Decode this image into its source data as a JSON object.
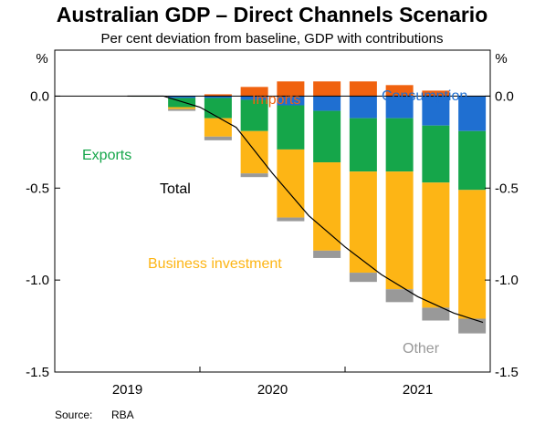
{
  "chart_data": {
    "type": "bar",
    "title": "Australian GDP – Direct Channels Scenario",
    "subtitle": "Per cent deviation from baseline, GDP with contributions",
    "ylabel_left": "%",
    "ylabel_right": "%",
    "ylim": [
      -1.5,
      0.25
    ],
    "yticks": [
      "0.0",
      "-0.5",
      "-1.0",
      "-1.5"
    ],
    "ytick_values": [
      0,
      -0.5,
      -1.0,
      -1.5
    ],
    "x_years": [
      "2019",
      "2020",
      "2021"
    ],
    "quarters": [
      "2019 Q1",
      "2019 Q2",
      "2019 Q3",
      "2019 Q4",
      "2020 Q1",
      "2020 Q2",
      "2020 Q3",
      "2020 Q4",
      "2021 Q1",
      "2021 Q2",
      "2021 Q3",
      "2021 Q4"
    ],
    "series": [
      {
        "name": "Consumption",
        "color": "#1f6fd1",
        "values": [
          0,
          0,
          0,
          -0.01,
          -0.01,
          -0.02,
          -0.05,
          -0.08,
          -0.12,
          -0.12,
          -0.16,
          -0.19
        ]
      },
      {
        "name": "Exports",
        "color": "#15a64a",
        "values": [
          0,
          0,
          -0.003,
          -0.05,
          -0.11,
          -0.17,
          -0.24,
          -0.28,
          -0.29,
          -0.29,
          -0.31,
          -0.32
        ]
      },
      {
        "name": "Business investment",
        "color": "#fdb515",
        "values": [
          0,
          0,
          0,
          -0.01,
          -0.1,
          -0.23,
          -0.37,
          -0.48,
          -0.55,
          -0.64,
          -0.68,
          -0.7
        ]
      },
      {
        "name": "Other",
        "color": "#999999",
        "values": [
          0,
          0,
          0,
          -0.01,
          -0.02,
          -0.02,
          -0.02,
          -0.04,
          -0.05,
          -0.07,
          -0.07,
          -0.08
        ]
      },
      {
        "name": "Imports",
        "color": "#f0620f",
        "values": [
          0,
          0,
          0,
          0,
          0.01,
          0.05,
          0.08,
          0.08,
          0.08,
          0.06,
          0.03,
          0
        ]
      }
    ],
    "total": {
      "name": "Total",
      "color": "#000000",
      "x": [
        "2019 Q2",
        "2019 Q3",
        "2019 Q4",
        "2020 Q1",
        "2020 Q2",
        "2020 Q3",
        "2020 Q4",
        "2021 Q1",
        "2021 Q2",
        "2021 Q3",
        "2021 Q4"
      ],
      "values": [
        0.0,
        -0.0,
        -0.06,
        -0.17,
        -0.42,
        -0.65,
        -0.82,
        -0.97,
        -1.09,
        -1.18,
        -1.23
      ]
    },
    "annotations": {
      "imports": "Imports",
      "consumption": "Consumption",
      "exports": "Exports",
      "total": "Total",
      "business_investment": "Business investment",
      "other": "Other"
    },
    "source_label": "Source:",
    "source_value": "RBA"
  }
}
